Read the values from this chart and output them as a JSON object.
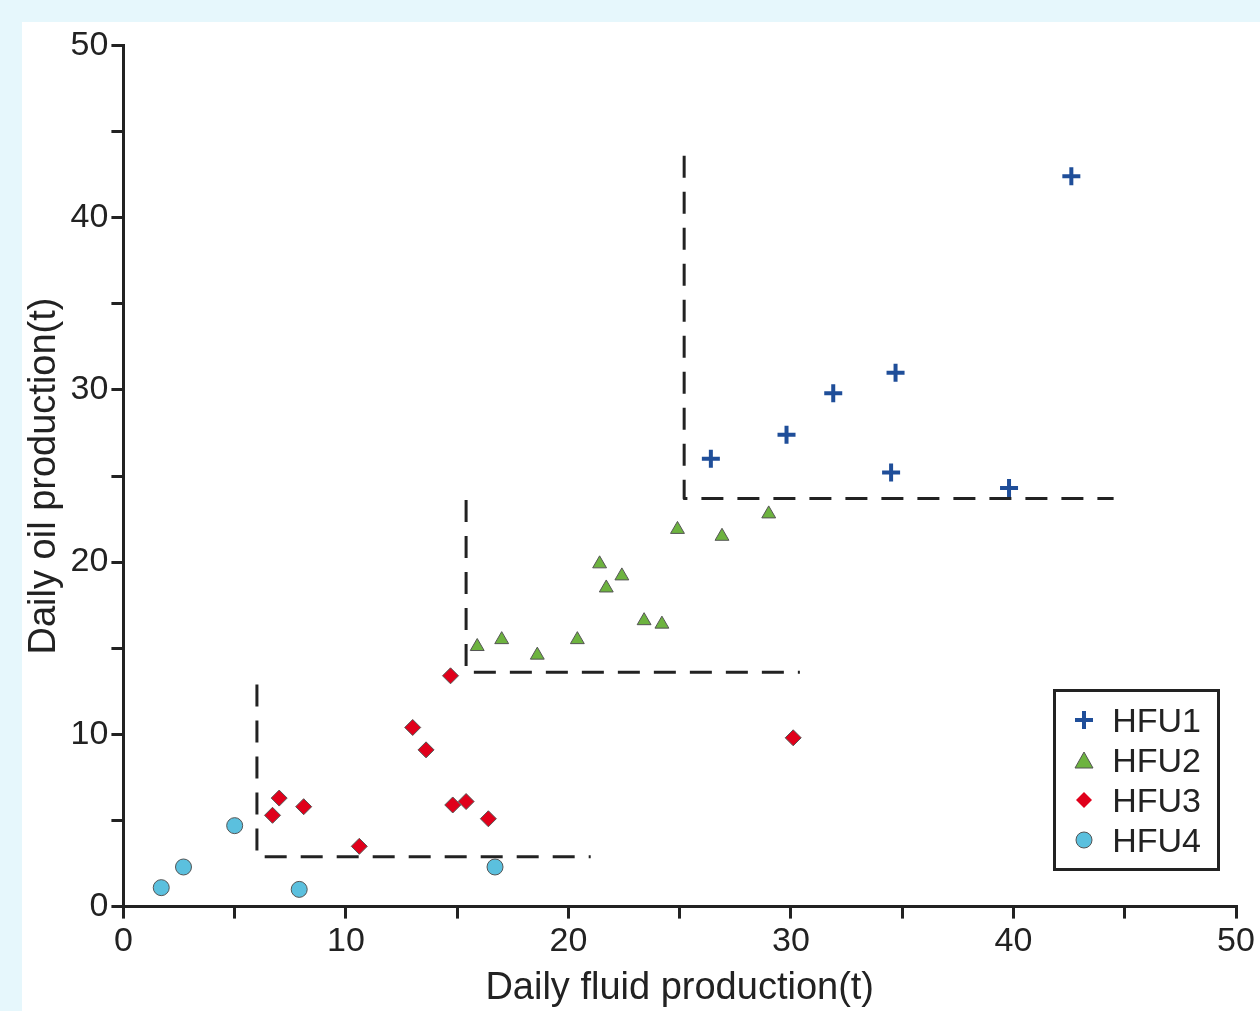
{
  "chart_data": {
    "type": "scatter",
    "xlabel": "Daily fluid production(t)",
    "ylabel": "Daily oil production(t)",
    "xlim": [
      0,
      50
    ],
    "ylim": [
      0,
      50
    ],
    "xticks": [
      0,
      {
        "value": 5,
        "label": null
      },
      10,
      {
        "value": 15,
        "label": null
      },
      20,
      {
        "value": 25,
        "label": null
      },
      30,
      {
        "value": 35,
        "label": null
      },
      40,
      {
        "value": 45,
        "label": null
      },
      50
    ],
    "yticks": [
      0,
      {
        "value": 5,
        "label": null
      },
      10,
      {
        "value": 15,
        "label": null
      },
      20,
      {
        "value": 25,
        "label": null
      },
      30,
      {
        "value": 35,
        "label": null
      },
      40,
      {
        "value": 45,
        "label": null
      },
      50
    ],
    "grid": false,
    "legend": "bottom right",
    "series": [
      {
        "name": "HFU1",
        "color": "#1f4e99",
        "marker": "cross",
        "x": [
          26.4,
          29.8,
          31.9,
          34.7,
          34.5,
          39.8,
          42.6
        ],
        "values": [
          26.0,
          27.4,
          29.8,
          31.0,
          25.2,
          24.3,
          42.4
        ]
      },
      {
        "name": "HFU2",
        "color": "#6db33f",
        "marker": "triangle",
        "x": [
          15.9,
          17.0,
          18.6,
          20.4,
          21.4,
          21.7,
          22.4,
          23.4,
          24.2,
          24.9,
          26.9,
          29.0
        ],
        "values": [
          15.1,
          15.5,
          14.6,
          15.5,
          19.9,
          18.5,
          19.2,
          16.6,
          16.4,
          21.9,
          21.5,
          22.8
        ]
      },
      {
        "name": "HFU3",
        "color": "#e0001b",
        "marker": "diamond",
        "x": [
          6.7,
          7.0,
          8.1,
          10.6,
          13.0,
          13.6,
          14.7,
          14.8,
          15.4,
          16.4,
          30.1
        ],
        "values": [
          5.3,
          6.3,
          5.8,
          3.5,
          10.4,
          9.1,
          13.4,
          5.9,
          6.1,
          5.1,
          9.8
        ]
      },
      {
        "name": "HFU4",
        "color": "#5bc0de",
        "marker": "circle",
        "x": [
          1.7,
          2.7,
          5.0,
          7.9,
          16.7
        ],
        "values": [
          1.1,
          2.3,
          4.7,
          1.0,
          2.3
        ]
      },
      {
        "type": "line",
        "color": "#222222",
        "line_style": "dashed",
        "marker": "none",
        "x": [
          6.0,
          6.0,
          21.0
        ],
        "values": [
          12.9,
          2.9,
          2.9
        ]
      },
      {
        "type": "line",
        "color": "#222222",
        "line_style": "dashed",
        "marker": "none",
        "x": [
          15.4,
          15.4,
          30.4
        ],
        "values": [
          23.6,
          13.6,
          13.6
        ]
      },
      {
        "type": "line",
        "color": "#222222",
        "line_style": "dashed",
        "marker": "none",
        "x": [
          25.2,
          25.2,
          44.5
        ],
        "values": [
          43.6,
          23.7,
          23.7
        ]
      }
    ]
  }
}
